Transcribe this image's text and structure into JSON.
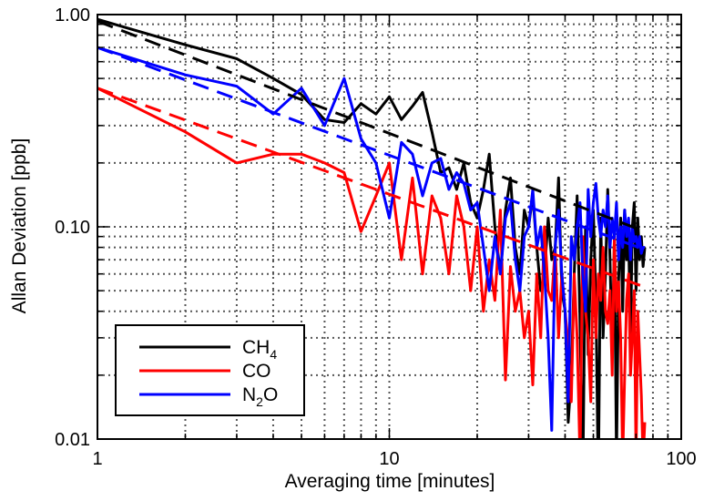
{
  "chart_data": {
    "type": "line",
    "xlabel": "Averaging time [minutes]",
    "ylabel": "Allan Deviation [ppb]",
    "x_scale": "log",
    "y_scale": "log",
    "xlim": [
      1,
      100
    ],
    "ylim": [
      0.01,
      1.0
    ],
    "x_ticks": [
      {
        "value": 1,
        "label": "1"
      },
      {
        "value": 10,
        "label": "10"
      },
      {
        "value": 100,
        "label": "100"
      }
    ],
    "y_ticks": [
      {
        "value": 0.01,
        "label": "0.01"
      },
      {
        "value": 0.1,
        "label": "0.10"
      },
      {
        "value": 1.0,
        "label": "1.00"
      }
    ],
    "grid": true,
    "legend": {
      "position": "bottom-left",
      "entries": [
        {
          "main": "CH",
          "sub": "4",
          "tail": "",
          "color": "#000000"
        },
        {
          "main": "CO",
          "sub": "",
          "tail": "",
          "color": "#ff0000"
        },
        {
          "main": "N",
          "sub": "2",
          "tail": "O",
          "color": "#0000ff"
        }
      ]
    },
    "series": [
      {
        "color": "#000000",
        "style": "solid",
        "x": [
          1,
          2,
          3,
          4,
          5,
          6,
          7,
          8,
          9,
          10,
          11,
          12,
          13,
          14,
          15,
          16,
          17,
          18,
          19,
          20,
          21,
          22,
          23,
          24,
          25,
          26,
          27,
          28,
          29,
          30,
          31,
          32,
          33,
          34,
          35,
          36,
          37,
          38,
          39,
          40,
          41,
          42,
          43,
          44,
          45,
          46,
          47,
          48,
          49,
          50,
          51,
          52,
          53,
          54,
          55,
          56,
          57,
          58,
          59,
          60,
          61,
          62,
          63,
          64,
          65,
          66,
          67,
          68,
          69,
          70,
          71,
          72,
          73,
          74,
          75
        ],
        "y": [
          0.95,
          0.72,
          0.62,
          0.5,
          0.42,
          0.32,
          0.31,
          0.38,
          0.34,
          0.41,
          0.32,
          0.37,
          0.43,
          0.28,
          0.18,
          0.19,
          0.15,
          0.2,
          0.13,
          0.11,
          0.15,
          0.22,
          0.1,
          0.06,
          0.12,
          0.17,
          0.08,
          0.06,
          0.12,
          0.1,
          0.14,
          0.08,
          0.05,
          0.06,
          0.11,
          0.07,
          0.08,
          0.17,
          0.05,
          0.04,
          0.012,
          0.02,
          0.06,
          0.14,
          0.035,
          0.006,
          0.1,
          0.025,
          0.07,
          0.12,
          0.045,
          0.006,
          0.11,
          0.03,
          0.06,
          0.15,
          0.07,
          0.025,
          0.09,
          0.008,
          0.055,
          0.11,
          0.04,
          0.12,
          0.07,
          0.09,
          0.03,
          0.1,
          0.13,
          0.05,
          0.11,
          0.07,
          0.09,
          0.065,
          0.08
        ]
      },
      {
        "color": "#ff0000",
        "style": "solid",
        "x": [
          1,
          2,
          3,
          4,
          5,
          6,
          7,
          8,
          9,
          10,
          11,
          12,
          13,
          14,
          15,
          16,
          17,
          18,
          19,
          20,
          21,
          22,
          23,
          24,
          25,
          26,
          27,
          28,
          29,
          30,
          31,
          32,
          33,
          34,
          35,
          36,
          37,
          38,
          39,
          40,
          41,
          42,
          43,
          44,
          45,
          46,
          47,
          48,
          49,
          50,
          51,
          52,
          53,
          54,
          55,
          56,
          57,
          58,
          59,
          60,
          61,
          62,
          63,
          64,
          65,
          66,
          67,
          68,
          69,
          70,
          71,
          72,
          73,
          74,
          75
        ],
        "y": [
          0.45,
          0.28,
          0.2,
          0.22,
          0.22,
          0.2,
          0.18,
          0.095,
          0.14,
          0.2,
          0.07,
          0.17,
          0.06,
          0.14,
          0.11,
          0.06,
          0.14,
          0.1,
          0.05,
          0.1,
          0.04,
          0.07,
          0.045,
          0.12,
          0.019,
          0.065,
          0.04,
          0.05,
          0.03,
          0.04,
          0.018,
          0.06,
          0.03,
          0.1,
          0.05,
          0.045,
          0.08,
          0.03,
          0.06,
          0.04,
          0.028,
          0.015,
          0.06,
          0.03,
          0.008,
          0.09,
          0.04,
          0.03,
          0.015,
          0.07,
          0.03,
          0.06,
          0.045,
          0.08,
          0.04,
          0.035,
          0.05,
          0.02,
          0.09,
          0.04,
          0.055,
          0.03,
          0.008,
          0.02,
          0.045,
          0.06,
          0.02,
          0.03,
          0.05,
          0.008,
          0.04,
          0.025,
          0.016,
          0.008,
          0.012
        ]
      },
      {
        "color": "#0000ff",
        "style": "solid",
        "x": [
          1,
          2,
          3,
          4,
          5,
          6,
          7,
          8,
          9,
          10,
          11,
          12,
          13,
          14,
          15,
          16,
          17,
          18,
          19,
          20,
          21,
          22,
          23,
          24,
          25,
          26,
          27,
          28,
          29,
          30,
          31,
          32,
          33,
          34,
          35,
          36,
          37,
          38,
          39,
          40,
          41,
          42,
          43,
          44,
          45,
          46,
          47,
          48,
          49,
          50,
          51,
          52,
          53,
          54,
          55,
          56,
          57,
          58,
          59,
          60,
          61,
          62,
          63,
          64,
          65,
          66,
          67,
          68,
          69,
          70,
          71,
          72,
          73,
          74,
          75
        ],
        "y": [
          0.7,
          0.52,
          0.46,
          0.34,
          0.45,
          0.3,
          0.5,
          0.26,
          0.2,
          0.11,
          0.25,
          0.22,
          0.14,
          0.2,
          0.21,
          0.15,
          0.18,
          0.16,
          0.12,
          0.13,
          0.08,
          0.05,
          0.09,
          0.06,
          0.11,
          0.13,
          0.07,
          0.05,
          0.09,
          0.1,
          0.15,
          0.08,
          0.1,
          0.06,
          0.03,
          0.011,
          0.08,
          0.12,
          0.06,
          0.04,
          0.015,
          0.09,
          0.07,
          0.1,
          0.13,
          0.06,
          0.04,
          0.15,
          0.09,
          0.13,
          0.16,
          0.11,
          0.09,
          0.12,
          0.1,
          0.14,
          0.08,
          0.11,
          0.09,
          0.13,
          0.07,
          0.1,
          0.08,
          0.12,
          0.09,
          0.11,
          0.07,
          0.1,
          0.085,
          0.09,
          0.08,
          0.09,
          0.075,
          0.08,
          0.08
        ]
      },
      {
        "color": "#000000",
        "style": "dashed",
        "x": [
          1,
          75
        ],
        "y": [
          0.93,
          0.095
        ]
      },
      {
        "color": "#ff0000",
        "style": "dashed",
        "x": [
          1,
          75
        ],
        "y": [
          0.45,
          0.052
        ]
      },
      {
        "color": "#0000ff",
        "style": "dashed",
        "x": [
          1,
          75
        ],
        "y": [
          0.7,
          0.078
        ]
      }
    ]
  }
}
